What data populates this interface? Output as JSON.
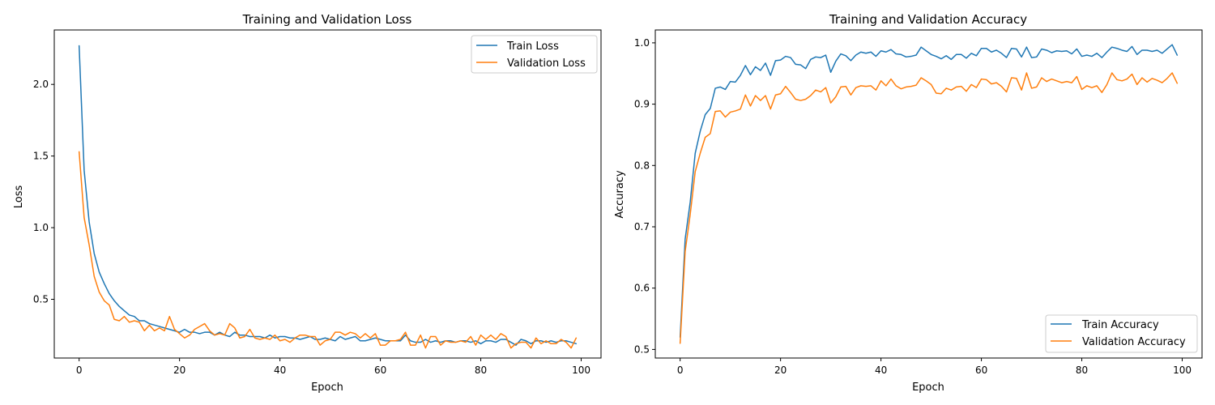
{
  "chart_data": [
    {
      "type": "line",
      "title": "Training and Validation Loss",
      "xlabel": "Epoch",
      "ylabel": "Loss",
      "xlim": [
        -4.95,
        103.95
      ],
      "ylim": [
        0.09,
        2.38
      ],
      "xticks": [
        0,
        20,
        40,
        60,
        80,
        100
      ],
      "xtick_labels": [
        "0",
        "20",
        "40",
        "60",
        "80",
        "100"
      ],
      "yticks": [
        0.5,
        1.0,
        1.5,
        2.0
      ],
      "ytick_labels": [
        "0.5",
        "1.0",
        "1.5",
        "2.0"
      ],
      "legend_position": "top-right",
      "grid": false,
      "series": [
        {
          "name": "Train Loss",
          "color": "#1f77b4",
          "values": [
            2.27,
            1.4,
            1.04,
            0.82,
            0.69,
            0.61,
            0.54,
            0.49,
            0.45,
            0.42,
            0.39,
            0.38,
            0.35,
            0.35,
            0.33,
            0.32,
            0.31,
            0.3,
            0.29,
            0.28,
            0.27,
            0.29,
            0.27,
            0.27,
            0.26,
            0.27,
            0.27,
            0.25,
            0.27,
            0.25,
            0.24,
            0.27,
            0.25,
            0.25,
            0.24,
            0.24,
            0.24,
            0.23,
            0.25,
            0.23,
            0.24,
            0.24,
            0.23,
            0.23,
            0.22,
            0.23,
            0.24,
            0.22,
            0.22,
            0.23,
            0.22,
            0.21,
            0.24,
            0.22,
            0.23,
            0.24,
            0.21,
            0.21,
            0.22,
            0.23,
            0.22,
            0.21,
            0.21,
            0.21,
            0.21,
            0.25,
            0.21,
            0.2,
            0.2,
            0.22,
            0.2,
            0.21,
            0.2,
            0.21,
            0.21,
            0.2,
            0.21,
            0.21,
            0.2,
            0.21,
            0.19,
            0.21,
            0.21,
            0.2,
            0.22,
            0.22,
            0.2,
            0.18,
            0.22,
            0.21,
            0.19,
            0.21,
            0.21,
            0.2,
            0.21,
            0.2,
            0.21,
            0.21,
            0.2,
            0.19
          ]
        },
        {
          "name": "Validation Loss",
          "color": "#ff7f0e",
          "values": [
            1.53,
            1.07,
            0.88,
            0.66,
            0.55,
            0.49,
            0.46,
            0.36,
            0.35,
            0.38,
            0.34,
            0.35,
            0.34,
            0.28,
            0.32,
            0.28,
            0.3,
            0.28,
            0.38,
            0.29,
            0.26,
            0.23,
            0.25,
            0.29,
            0.31,
            0.33,
            0.28,
            0.25,
            0.26,
            0.25,
            0.33,
            0.3,
            0.23,
            0.24,
            0.29,
            0.23,
            0.22,
            0.23,
            0.22,
            0.25,
            0.21,
            0.22,
            0.2,
            0.23,
            0.25,
            0.25,
            0.24,
            0.24,
            0.18,
            0.21,
            0.22,
            0.27,
            0.27,
            0.25,
            0.27,
            0.26,
            0.23,
            0.26,
            0.23,
            0.26,
            0.18,
            0.18,
            0.21,
            0.21,
            0.22,
            0.27,
            0.18,
            0.18,
            0.25,
            0.16,
            0.24,
            0.24,
            0.18,
            0.21,
            0.2,
            0.2,
            0.21,
            0.2,
            0.24,
            0.18,
            0.25,
            0.22,
            0.25,
            0.22,
            0.26,
            0.24,
            0.16,
            0.19,
            0.2,
            0.2,
            0.16,
            0.23,
            0.19,
            0.21,
            0.19,
            0.19,
            0.22,
            0.2,
            0.16,
            0.23
          ]
        }
      ]
    },
    {
      "type": "line",
      "title": "Training and Validation Accuracy",
      "xlabel": "Epoch",
      "ylabel": "Accuracy",
      "xlim": [
        -4.95,
        103.95
      ],
      "ylim": [
        0.486,
        1.021
      ],
      "xticks": [
        0,
        20,
        40,
        60,
        80,
        100
      ],
      "xtick_labels": [
        "0",
        "20",
        "40",
        "60",
        "80",
        "100"
      ],
      "yticks": [
        0.5,
        0.6,
        0.7,
        0.8,
        0.9,
        1.0
      ],
      "ytick_labels": [
        "0.5",
        "0.6",
        "0.7",
        "0.8",
        "0.9",
        "1.0"
      ],
      "legend_position": "bottom-right",
      "grid": false,
      "series": [
        {
          "name": "Train Accuracy",
          "color": "#1f77b4",
          "values": [
            0.52,
            0.68,
            0.74,
            0.82,
            0.856,
            0.883,
            0.893,
            0.926,
            0.928,
            0.924,
            0.937,
            0.936,
            0.947,
            0.963,
            0.948,
            0.961,
            0.955,
            0.967,
            0.947,
            0.971,
            0.972,
            0.978,
            0.976,
            0.965,
            0.964,
            0.958,
            0.973,
            0.977,
            0.976,
            0.98,
            0.952,
            0.97,
            0.982,
            0.979,
            0.971,
            0.98,
            0.985,
            0.983,
            0.985,
            0.978,
            0.987,
            0.985,
            0.989,
            0.982,
            0.981,
            0.977,
            0.978,
            0.98,
            0.993,
            0.987,
            0.981,
            0.978,
            0.974,
            0.979,
            0.973,
            0.981,
            0.981,
            0.975,
            0.983,
            0.979,
            0.991,
            0.991,
            0.985,
            0.988,
            0.983,
            0.976,
            0.991,
            0.99,
            0.977,
            0.993,
            0.976,
            0.977,
            0.99,
            0.988,
            0.984,
            0.987,
            0.986,
            0.987,
            0.982,
            0.99,
            0.978,
            0.98,
            0.978,
            0.983,
            0.976,
            0.985,
            0.993,
            0.991,
            0.988,
            0.986,
            0.994,
            0.981,
            0.988,
            0.988,
            0.986,
            0.988,
            0.983,
            0.99,
            0.997,
            0.98
          ]
        },
        {
          "name": "Validation Accuracy",
          "color": "#ff7f0e",
          "values": [
            0.51,
            0.66,
            0.72,
            0.79,
            0.82,
            0.846,
            0.852,
            0.888,
            0.889,
            0.879,
            0.887,
            0.889,
            0.892,
            0.915,
            0.897,
            0.914,
            0.906,
            0.914,
            0.892,
            0.915,
            0.917,
            0.929,
            0.919,
            0.908,
            0.906,
            0.908,
            0.914,
            0.923,
            0.92,
            0.927,
            0.902,
            0.912,
            0.928,
            0.929,
            0.915,
            0.927,
            0.93,
            0.929,
            0.93,
            0.923,
            0.938,
            0.93,
            0.941,
            0.93,
            0.925,
            0.928,
            0.929,
            0.931,
            0.943,
            0.938,
            0.932,
            0.918,
            0.917,
            0.926,
            0.923,
            0.928,
            0.929,
            0.921,
            0.932,
            0.927,
            0.941,
            0.94,
            0.933,
            0.935,
            0.929,
            0.92,
            0.943,
            0.942,
            0.923,
            0.951,
            0.926,
            0.928,
            0.943,
            0.937,
            0.941,
            0.938,
            0.935,
            0.937,
            0.935,
            0.945,
            0.924,
            0.93,
            0.927,
            0.93,
            0.919,
            0.932,
            0.951,
            0.94,
            0.938,
            0.941,
            0.949,
            0.932,
            0.943,
            0.936,
            0.942,
            0.939,
            0.935,
            0.942,
            0.951,
            0.934
          ]
        }
      ]
    }
  ]
}
